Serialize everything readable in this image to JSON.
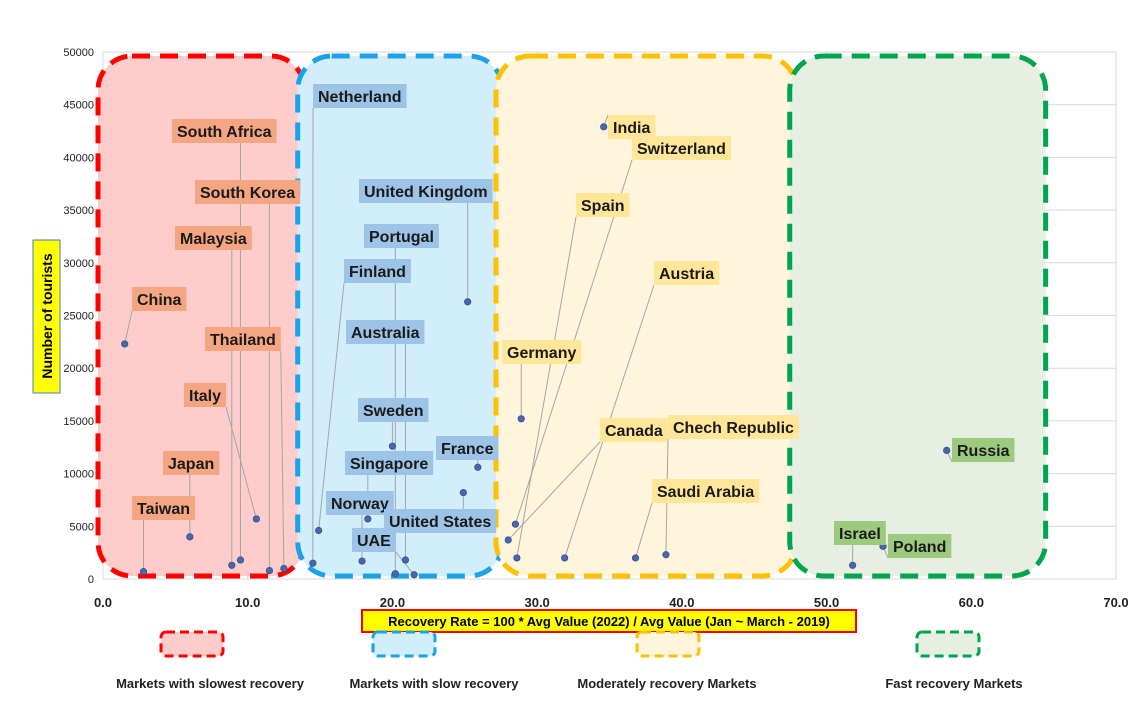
{
  "chart_data": {
    "type": "scatter",
    "title": "",
    "xlabel": "Recovery Rate = 100 * Avg Value (2022) /  Avg Value (Jan  ~ March - 2019)",
    "ylabel": "Number of tourists",
    "xlim": [
      0,
      70
    ],
    "ylim": [
      0,
      50000
    ],
    "x_ticks": [
      "0.0",
      "10.0",
      "20.0",
      "30.0",
      "40.0",
      "50.0",
      "60.0",
      "70.0"
    ],
    "y_ticks": [
      "0",
      "5000",
      "10000",
      "15000",
      "20000",
      "25000",
      "30000",
      "35000",
      "40000",
      "45000",
      "50000"
    ],
    "grid": true,
    "groups": [
      {
        "name": "Markets with slowest recovery",
        "color": "#ff0000",
        "fill": "#ffcccc",
        "label_fill": "#f4a582",
        "xrange": [
          0,
          13.8
        ]
      },
      {
        "name": "Markets with slow recovery",
        "color": "#1aa3e8",
        "fill": "#d2eefb",
        "label_fill": "#9dc3e6",
        "xrange": [
          13.8,
          27.5
        ]
      },
      {
        "name": "Moderately recovery Markets",
        "color": "#ffc000",
        "fill": "#fff5dc",
        "label_fill": "#ffe699",
        "xrange": [
          27.5,
          47.8
        ]
      },
      {
        "name": "Fast recovery Markets",
        "color": "#00a550",
        "fill": "#e7eee2",
        "label_fill": "#9ccb7f",
        "xrange": [
          47.8,
          65
        ]
      }
    ],
    "points": [
      {
        "name": "China",
        "group": 0,
        "x": 1.5,
        "y": 22300
      },
      {
        "name": "Taiwan",
        "group": 0,
        "x": 2.8,
        "y": 700
      },
      {
        "name": "Japan",
        "group": 0,
        "x": 6.0,
        "y": 4000
      },
      {
        "name": "South Africa",
        "group": 0,
        "x": 9.5,
        "y": 1800
      },
      {
        "name": "South Korea",
        "group": 0,
        "x": 11.5,
        "y": 800
      },
      {
        "name": "Malaysia",
        "group": 0,
        "x": 8.9,
        "y": 1300
      },
      {
        "name": "Thailand",
        "group": 0,
        "x": 12.5,
        "y": 1000
      },
      {
        "name": "Italy",
        "group": 0,
        "x": 10.6,
        "y": 5700
      },
      {
        "name": "Netherland",
        "group": 1,
        "x": 14.5,
        "y": 1500
      },
      {
        "name": "Finland",
        "group": 1,
        "x": 14.9,
        "y": 4600
      },
      {
        "name": "United Kingdom",
        "group": 1,
        "x": 25.2,
        "y": 26300
      },
      {
        "name": "Portugal",
        "group": 1,
        "x": 20.2,
        "y": 500
      },
      {
        "name": "Australia",
        "group": 1,
        "x": 20.9,
        "y": 1800
      },
      {
        "name": "Sweden",
        "group": 1,
        "x": 20.0,
        "y": 12600
      },
      {
        "name": "Singapore",
        "group": 1,
        "x": 18.3,
        "y": 5700
      },
      {
        "name": "Norway",
        "group": 1,
        "x": 17.9,
        "y": 1700
      },
      {
        "name": "France",
        "group": 1,
        "x": 25.9,
        "y": 10600
      },
      {
        "name": "United States",
        "group": 1,
        "x": 24.9,
        "y": 8200
      },
      {
        "name": "UAE",
        "group": 1,
        "x": 21.5,
        "y": 400
      },
      {
        "name": "India",
        "group": 2,
        "x": 34.6,
        "y": 42900
      },
      {
        "name": "Germany",
        "group": 2,
        "x": 28.9,
        "y": 15200
      },
      {
        "name": "Switzerland",
        "group": 2,
        "x": 28.5,
        "y": 5200
      },
      {
        "name": "Spain",
        "group": 2,
        "x": 28.6,
        "y": 2000
      },
      {
        "name": "Austria",
        "group": 2,
        "x": 31.9,
        "y": 2000
      },
      {
        "name": "Canada",
        "group": 2,
        "x": 28.0,
        "y": 3700
      },
      {
        "name": "Chech Republic",
        "group": 2,
        "x": 38.9,
        "y": 2300
      },
      {
        "name": "Saudi Arabia",
        "group": 2,
        "x": 36.8,
        "y": 2000
      },
      {
        "name": "Russia",
        "group": 3,
        "x": 58.3,
        "y": 12200
      },
      {
        "name": "Israel",
        "group": 3,
        "x": 51.8,
        "y": 1300
      },
      {
        "name": "Poland",
        "group": 3,
        "x": 53.9,
        "y": 3100
      }
    ]
  }
}
